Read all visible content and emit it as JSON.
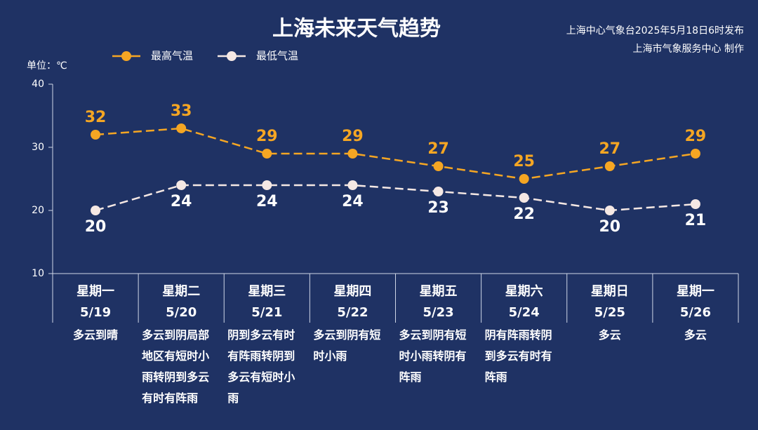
{
  "chart_data": {
    "type": "line",
    "title": "上海未来天气趋势",
    "source": [
      "上海中心气象台2025年5月18日6时发布",
      "上海市气象服务中心 制作"
    ],
    "unit_label": "单位：℃",
    "categories": [
      "星期一",
      "星期二",
      "星期三",
      "星期四",
      "星期五",
      "星期六",
      "星期日",
      "星期一"
    ],
    "dates": [
      "5/19",
      "5/20",
      "5/21",
      "5/22",
      "5/23",
      "5/24",
      "5/25",
      "5/26"
    ],
    "weather": [
      "多云到晴",
      "多云到阴局部地区有短时小雨转阴到多云有时有阵雨",
      "阴到多云有时有阵雨转阴到多云有短时小雨",
      "多云到阴有短时小雨",
      "多云到阴有短时小雨转阴有阵雨",
      "阴有阵雨转阴到多云有时有阵雨",
      "多云",
      "多云"
    ],
    "series": [
      {
        "name": "最高气温",
        "color": "#f5a623",
        "values": [
          32,
          33,
          29,
          29,
          27,
          25,
          27,
          29
        ]
      },
      {
        "name": "最低气温",
        "color": "#f5e8e4",
        "values": [
          20,
          24,
          24,
          24,
          23,
          22,
          20,
          21
        ]
      }
    ],
    "ylim": [
      10,
      40
    ],
    "yticks": [
      10,
      20,
      30,
      40
    ],
    "grid": false
  }
}
